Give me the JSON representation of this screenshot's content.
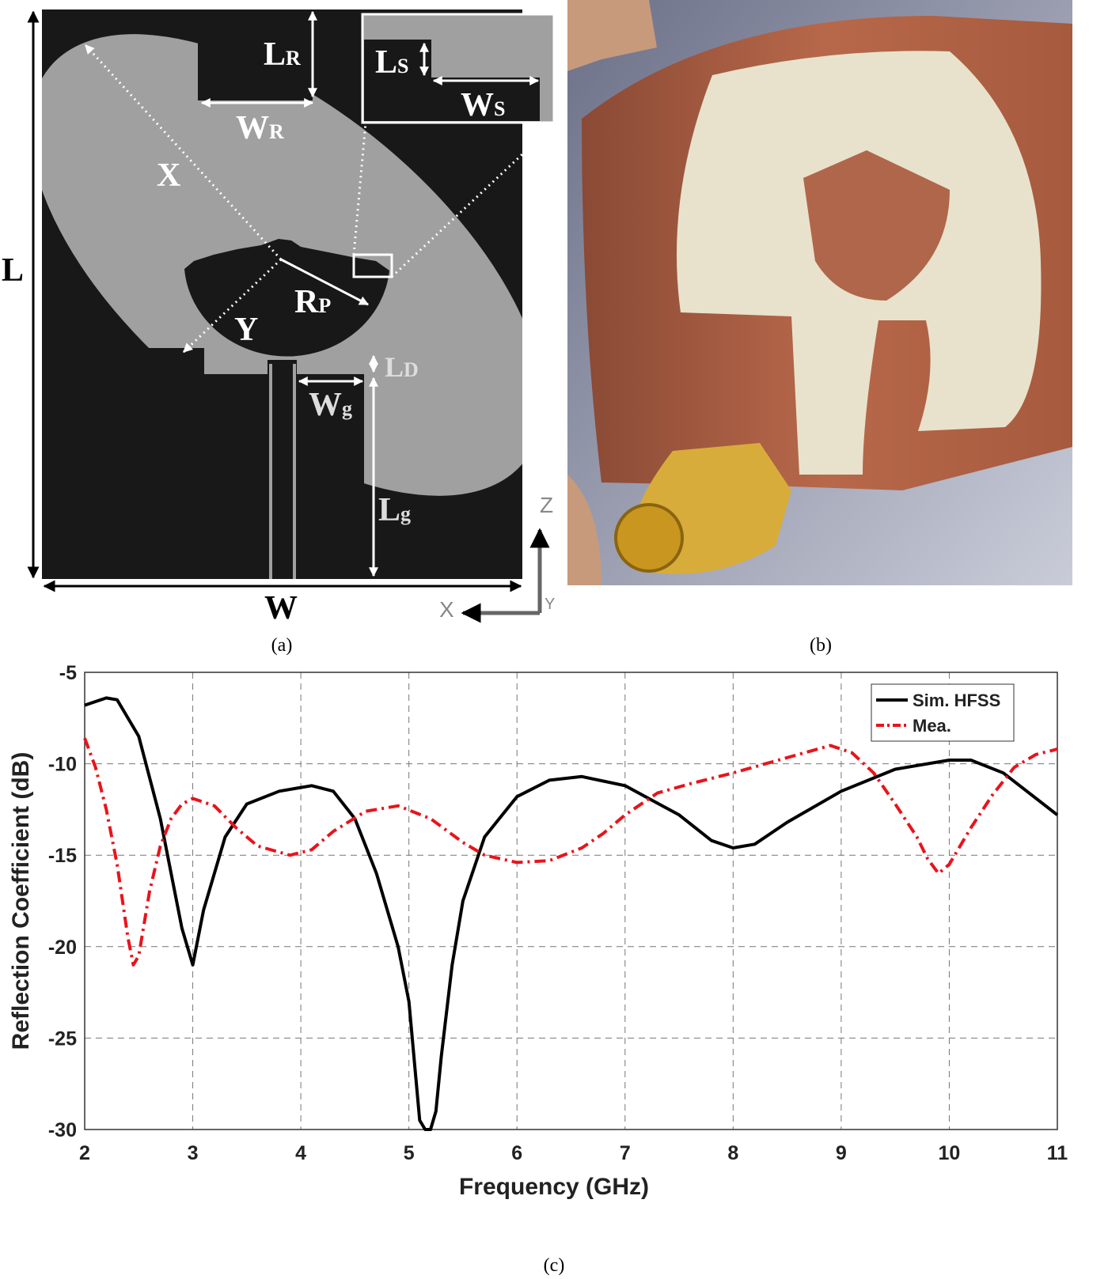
{
  "diagram": {
    "labels": {
      "LR": {
        "main": "L",
        "sub": "R"
      },
      "WR": {
        "main": "W",
        "sub": "R"
      },
      "LS": {
        "main": "L",
        "sub": "S"
      },
      "WS": {
        "main": "W",
        "sub": "S"
      },
      "X": "X",
      "Y": "Y",
      "RP": {
        "main": "R",
        "sub": "P"
      },
      "LD": {
        "main": "L",
        "sub": "D"
      },
      "Wg": {
        "main": "W",
        "sub": "g"
      },
      "Lg": {
        "main": "L",
        "sub": "g"
      },
      "L": "L",
      "W": "W",
      "axis_z": "Z",
      "axis_x": "X",
      "axis_y": "Y"
    }
  },
  "panel_labels": [
    "(a)",
    "(b)",
    "(c)"
  ],
  "chart_data": {
    "type": "line",
    "x_label": "Frequency (GHz)",
    "y_label": "Reflection Coefficient (dB)",
    "xlim": [
      2,
      11
    ],
    "ylim": [
      -30,
      -5
    ],
    "xticks": [
      2,
      3,
      4,
      5,
      6,
      7,
      8,
      9,
      10,
      11
    ],
    "yticks": [
      -30,
      -25,
      -20,
      -15,
      -10,
      -5
    ],
    "grid": true,
    "legend": "upper right",
    "series": [
      {
        "name": "Sim. HFSS",
        "color": "#000000",
        "dash": "solid",
        "x": [
          2.0,
          2.2,
          2.3,
          2.5,
          2.7,
          2.9,
          3.0,
          3.1,
          3.3,
          3.5,
          3.8,
          4.1,
          4.3,
          4.5,
          4.7,
          4.9,
          5.0,
          5.1,
          5.15,
          5.2,
          5.25,
          5.3,
          5.4,
          5.5,
          5.7,
          6.0,
          6.3,
          6.6,
          7.0,
          7.5,
          7.8,
          8.0,
          8.2,
          8.5,
          9.0,
          9.5,
          10.0,
          10.2,
          10.5,
          11.0
        ],
        "values": [
          -6.8,
          -6.4,
          -6.5,
          -8.5,
          -13,
          -19,
          -21,
          -18,
          -14,
          -12.2,
          -11.5,
          -11.2,
          -11.5,
          -13,
          -16,
          -20,
          -23,
          -29.5,
          -30,
          -30,
          -29,
          -26,
          -21,
          -17.5,
          -14,
          -11.8,
          -10.9,
          -10.7,
          -11.2,
          -12.8,
          -14.2,
          -14.6,
          -14.4,
          -13.2,
          -11.5,
          -10.3,
          -9.8,
          -9.8,
          -10.5,
          -12.8
        ]
      },
      {
        "name": "Mea.",
        "color": "#e8141b",
        "dash": "dashdot",
        "x": [
          2.0,
          2.1,
          2.2,
          2.3,
          2.4,
          2.45,
          2.5,
          2.6,
          2.7,
          2.8,
          2.9,
          3.0,
          3.2,
          3.4,
          3.6,
          3.9,
          4.1,
          4.3,
          4.6,
          4.9,
          5.2,
          5.5,
          5.7,
          6.0,
          6.3,
          6.6,
          6.8,
          7.0,
          7.3,
          7.6,
          8.0,
          8.3,
          8.6,
          8.9,
          9.1,
          9.3,
          9.5,
          9.7,
          9.8,
          9.9,
          10.0,
          10.2,
          10.4,
          10.6,
          10.8,
          11.0
        ],
        "values": [
          -8.6,
          -10.2,
          -12.5,
          -15.5,
          -19.5,
          -21,
          -20.5,
          -17,
          -14.5,
          -13,
          -12.2,
          -11.9,
          -12.3,
          -13.5,
          -14.5,
          -15,
          -14.7,
          -13.7,
          -12.6,
          -12.3,
          -13,
          -14.3,
          -15,
          -15.4,
          -15.3,
          -14.6,
          -13.8,
          -12.8,
          -11.6,
          -11.1,
          -10.5,
          -10,
          -9.5,
          -9.0,
          -9.4,
          -10.5,
          -12.2,
          -14,
          -15.2,
          -16,
          -15.5,
          -13.5,
          -11.7,
          -10.2,
          -9.5,
          -9.2
        ]
      }
    ]
  }
}
